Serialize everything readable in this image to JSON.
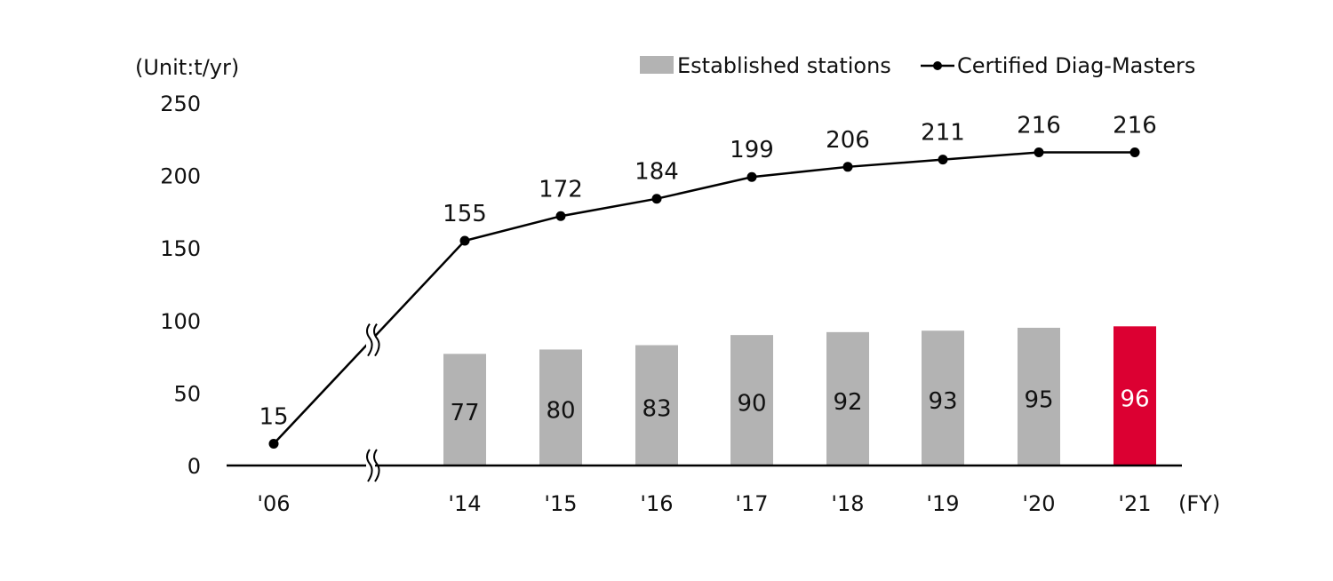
{
  "chart_data": {
    "type": "bar+line",
    "unit_label": "(Unit:t/yr)",
    "x_unit_label": "(FY)",
    "categories": [
      "'06",
      "'14",
      "'15",
      "'16",
      "'17",
      "'18",
      "'19",
      "'20",
      "'21"
    ],
    "axis_break_between": [
      "'06",
      "'14"
    ],
    "ylim": [
      0,
      250
    ],
    "yticks": [
      0,
      50,
      100,
      150,
      200,
      250
    ],
    "grid": false,
    "legend_position": "top-right",
    "series": [
      {
        "name": "Established stations",
        "type": "bar",
        "color": "#b3b3b3",
        "highlight_color": "#dc0032",
        "highlight_category": "'21",
        "values": [
          null,
          77,
          80,
          83,
          90,
          92,
          93,
          95,
          96
        ]
      },
      {
        "name": "Certified Diag-Masters",
        "type": "line",
        "color": "#000000",
        "values": [
          15,
          155,
          172,
          184,
          199,
          206,
          211,
          216,
          216
        ]
      }
    ]
  }
}
